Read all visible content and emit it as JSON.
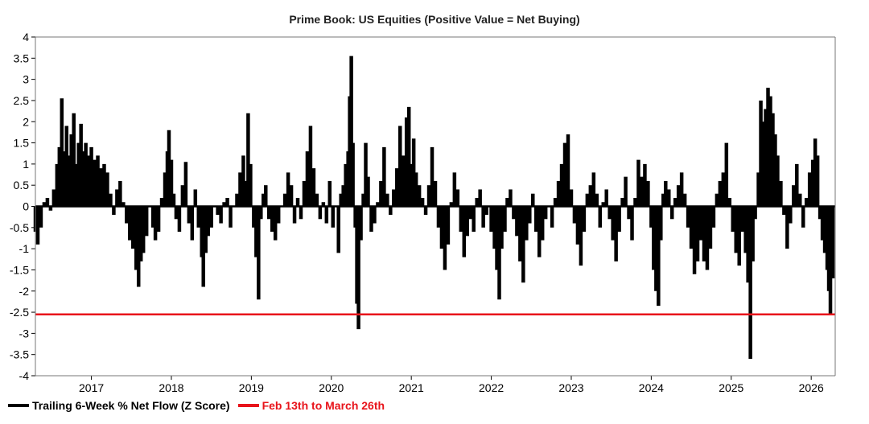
{
  "chart_data": {
    "type": "bar",
    "title": "Prime Book: US Equities (Positive Value = Net Buying)",
    "xlabel": "",
    "ylabel": "",
    "xlim": [
      2016.3,
      2026.3
    ],
    "ylim": [
      -4,
      4
    ],
    "yticks": [
      "4",
      "3.5",
      "3",
      "2.5",
      "2",
      "1.5",
      "1",
      "0.5",
      "0",
      "-0.5",
      "-1",
      "-1.5",
      "-2",
      "-2.5",
      "-3",
      "-3.5",
      "-4"
    ],
    "xticks": [
      "2017",
      "2018",
      "2019",
      "2020",
      "2021",
      "2022",
      "2023",
      "2024",
      "2025",
      "2026"
    ],
    "series": [
      {
        "name": "Trailing 6-Week % Net Flow (Z Score)",
        "color": "#000000",
        "points": [
          [
            2016.3,
            -0.6
          ],
          [
            2016.33,
            -0.9
          ],
          [
            2016.37,
            -0.5
          ],
          [
            2016.41,
            0.1
          ],
          [
            2016.45,
            0.2
          ],
          [
            2016.49,
            -0.1
          ],
          [
            2016.53,
            0.4
          ],
          [
            2016.57,
            1.0
          ],
          [
            2016.6,
            1.4
          ],
          [
            2016.63,
            2.55
          ],
          [
            2016.66,
            1.3
          ],
          [
            2016.69,
            1.9
          ],
          [
            2016.72,
            1.2
          ],
          [
            2016.75,
            1.7
          ],
          [
            2016.78,
            2.2
          ],
          [
            2016.81,
            1.0
          ],
          [
            2016.84,
            1.5
          ],
          [
            2016.87,
            1.95
          ],
          [
            2016.9,
            1.3
          ],
          [
            2016.93,
            1.5
          ],
          [
            2016.96,
            1.2
          ],
          [
            2017.0,
            1.4
          ],
          [
            2017.04,
            1.1
          ],
          [
            2017.08,
            1.2
          ],
          [
            2017.12,
            0.9
          ],
          [
            2017.16,
            1.0
          ],
          [
            2017.2,
            0.8
          ],
          [
            2017.24,
            0.3
          ],
          [
            2017.28,
            -0.2
          ],
          [
            2017.32,
            0.4
          ],
          [
            2017.36,
            0.6
          ],
          [
            2017.4,
            0.1
          ],
          [
            2017.44,
            -0.4
          ],
          [
            2017.48,
            -0.8
          ],
          [
            2017.52,
            -1.0
          ],
          [
            2017.56,
            -1.5
          ],
          [
            2017.59,
            -1.9
          ],
          [
            2017.62,
            -1.3
          ],
          [
            2017.65,
            -1.1
          ],
          [
            2017.69,
            -0.7
          ],
          [
            2017.73,
            0.0
          ],
          [
            2017.77,
            -0.5
          ],
          [
            2017.8,
            -0.8
          ],
          [
            2017.84,
            -0.6
          ],
          [
            2017.88,
            0.2
          ],
          [
            2017.92,
            0.8
          ],
          [
            2017.95,
            1.3
          ],
          [
            2017.97,
            1.8
          ],
          [
            2018.0,
            1.1
          ],
          [
            2018.03,
            0.3
          ],
          [
            2018.06,
            -0.3
          ],
          [
            2018.1,
            -0.6
          ],
          [
            2018.14,
            0.5
          ],
          [
            2018.18,
            1.05
          ],
          [
            2018.22,
            -0.4
          ],
          [
            2018.26,
            -0.8
          ],
          [
            2018.3,
            0.4
          ],
          [
            2018.34,
            -0.5
          ],
          [
            2018.38,
            -1.2
          ],
          [
            2018.4,
            -1.9
          ],
          [
            2018.43,
            -1.1
          ],
          [
            2018.46,
            -0.7
          ],
          [
            2018.5,
            -0.5
          ],
          [
            2018.54,
            0.0
          ],
          [
            2018.58,
            -0.2
          ],
          [
            2018.62,
            -0.4
          ],
          [
            2018.66,
            0.1
          ],
          [
            2018.7,
            0.2
          ],
          [
            2018.74,
            -0.5
          ],
          [
            2018.78,
            0.0
          ],
          [
            2018.82,
            0.3
          ],
          [
            2018.86,
            0.8
          ],
          [
            2018.9,
            1.2
          ],
          [
            2018.93,
            0.6
          ],
          [
            2018.96,
            2.2
          ],
          [
            2018.99,
            1.0
          ],
          [
            2019.03,
            -0.5
          ],
          [
            2019.06,
            -1.2
          ],
          [
            2019.09,
            -2.2
          ],
          [
            2019.12,
            -0.3
          ],
          [
            2019.15,
            0.3
          ],
          [
            2019.18,
            0.5
          ],
          [
            2019.22,
            -0.3
          ],
          [
            2019.26,
            -0.6
          ],
          [
            2019.3,
            -0.8
          ],
          [
            2019.34,
            -0.4
          ],
          [
            2019.38,
            0.0
          ],
          [
            2019.42,
            0.3
          ],
          [
            2019.46,
            0.8
          ],
          [
            2019.5,
            0.5
          ],
          [
            2019.54,
            -0.4
          ],
          [
            2019.58,
            0.2
          ],
          [
            2019.62,
            -0.3
          ],
          [
            2019.66,
            0.6
          ],
          [
            2019.7,
            1.3
          ],
          [
            2019.74,
            1.9
          ],
          [
            2019.78,
            0.9
          ],
          [
            2019.82,
            0.3
          ],
          [
            2019.86,
            -0.3
          ],
          [
            2019.9,
            0.1
          ],
          [
            2019.94,
            -0.4
          ],
          [
            2019.98,
            0.6
          ],
          [
            2020.02,
            -0.5
          ],
          [
            2020.06,
            0.0
          ],
          [
            2020.09,
            -1.1
          ],
          [
            2020.12,
            0.3
          ],
          [
            2020.15,
            0.5
          ],
          [
            2020.18,
            1.0
          ],
          [
            2020.21,
            1.3
          ],
          [
            2020.23,
            2.6
          ],
          [
            2020.25,
            3.55
          ],
          [
            2020.27,
            1.5
          ],
          [
            2020.3,
            -0.5
          ],
          [
            2020.32,
            -2.3
          ],
          [
            2020.34,
            -2.9
          ],
          [
            2020.37,
            -0.8
          ],
          [
            2020.4,
            0.3
          ],
          [
            2020.43,
            1.5
          ],
          [
            2020.46,
            0.7
          ],
          [
            2020.5,
            -0.6
          ],
          [
            2020.54,
            -0.4
          ],
          [
            2020.58,
            0.1
          ],
          [
            2020.62,
            0.6
          ],
          [
            2020.66,
            1.4
          ],
          [
            2020.7,
            0.3
          ],
          [
            2020.74,
            -0.2
          ],
          [
            2020.78,
            0.4
          ],
          [
            2020.82,
            0.9
          ],
          [
            2020.86,
            1.9
          ],
          [
            2020.9,
            1.2
          ],
          [
            2020.94,
            2.1
          ],
          [
            2020.97,
            2.35
          ],
          [
            2021.0,
            1.0
          ],
          [
            2021.03,
            1.6
          ],
          [
            2021.06,
            0.8
          ],
          [
            2021.1,
            0.5
          ],
          [
            2021.14,
            0.2
          ],
          [
            2021.18,
            -0.2
          ],
          [
            2021.22,
            0.5
          ],
          [
            2021.26,
            1.4
          ],
          [
            2021.3,
            0.6
          ],
          [
            2021.34,
            -0.5
          ],
          [
            2021.38,
            -1.0
          ],
          [
            2021.42,
            -1.5
          ],
          [
            2021.46,
            -0.9
          ],
          [
            2021.5,
            0.1
          ],
          [
            2021.54,
            0.8
          ],
          [
            2021.58,
            0.4
          ],
          [
            2021.62,
            -0.6
          ],
          [
            2021.66,
            -1.2
          ],
          [
            2021.7,
            -0.7
          ],
          [
            2021.74,
            -0.3
          ],
          [
            2021.78,
            -0.6
          ],
          [
            2021.82,
            0.2
          ],
          [
            2021.86,
            0.4
          ],
          [
            2021.9,
            -0.5
          ],
          [
            2021.94,
            -0.2
          ],
          [
            2022.0,
            -0.6
          ],
          [
            2022.04,
            -1.0
          ],
          [
            2022.07,
            -1.5
          ],
          [
            2022.1,
            -2.2
          ],
          [
            2022.13,
            -1.0
          ],
          [
            2022.17,
            -0.6
          ],
          [
            2022.2,
            0.2
          ],
          [
            2022.24,
            0.4
          ],
          [
            2022.28,
            -0.3
          ],
          [
            2022.32,
            -0.7
          ],
          [
            2022.36,
            -1.3
          ],
          [
            2022.4,
            -1.8
          ],
          [
            2022.44,
            -0.8
          ],
          [
            2022.48,
            -0.4
          ],
          [
            2022.52,
            0.3
          ],
          [
            2022.56,
            -0.6
          ],
          [
            2022.6,
            -1.2
          ],
          [
            2022.64,
            -0.8
          ],
          [
            2022.68,
            -0.3
          ],
          [
            2022.72,
            0.0
          ],
          [
            2022.76,
            -0.5
          ],
          [
            2022.8,
            0.2
          ],
          [
            2022.84,
            0.6
          ],
          [
            2022.88,
            1.0
          ],
          [
            2022.92,
            1.5
          ],
          [
            2022.96,
            1.7
          ],
          [
            2023.0,
            0.4
          ],
          [
            2023.04,
            -0.4
          ],
          [
            2023.08,
            -0.9
          ],
          [
            2023.12,
            -1.4
          ],
          [
            2023.16,
            -0.6
          ],
          [
            2023.2,
            0.3
          ],
          [
            2023.24,
            0.5
          ],
          [
            2023.28,
            0.8
          ],
          [
            2023.32,
            0.3
          ],
          [
            2023.36,
            -0.5
          ],
          [
            2023.4,
            0.1
          ],
          [
            2023.44,
            0.4
          ],
          [
            2023.48,
            -0.3
          ],
          [
            2023.52,
            -0.8
          ],
          [
            2023.56,
            -1.3
          ],
          [
            2023.6,
            -0.6
          ],
          [
            2023.64,
            0.2
          ],
          [
            2023.68,
            0.7
          ],
          [
            2023.72,
            -0.3
          ],
          [
            2023.76,
            -0.8
          ],
          [
            2023.8,
            0.2
          ],
          [
            2023.84,
            1.1
          ],
          [
            2023.88,
            0.7
          ],
          [
            2023.92,
            1.0
          ],
          [
            2023.96,
            0.6
          ],
          [
            2024.0,
            -0.5
          ],
          [
            2024.03,
            -1.5
          ],
          [
            2024.06,
            -2.0
          ],
          [
            2024.09,
            -2.35
          ],
          [
            2024.12,
            -0.8
          ],
          [
            2024.15,
            0.3
          ],
          [
            2024.18,
            0.6
          ],
          [
            2024.22,
            0.4
          ],
          [
            2024.26,
            -0.3
          ],
          [
            2024.3,
            0.2
          ],
          [
            2024.34,
            0.5
          ],
          [
            2024.38,
            0.8
          ],
          [
            2024.42,
            0.3
          ],
          [
            2024.46,
            -0.5
          ],
          [
            2024.5,
            -1.0
          ],
          [
            2024.54,
            -1.6
          ],
          [
            2024.58,
            -1.3
          ],
          [
            2024.62,
            -0.8
          ],
          [
            2024.66,
            -1.3
          ],
          [
            2024.7,
            -1.5
          ],
          [
            2024.74,
            -1.0
          ],
          [
            2024.78,
            -0.5
          ],
          [
            2024.82,
            0.3
          ],
          [
            2024.86,
            0.6
          ],
          [
            2024.9,
            0.8
          ],
          [
            2024.94,
            1.5
          ],
          [
            2024.98,
            0.2
          ],
          [
            2025.02,
            -0.6
          ],
          [
            2025.06,
            -1.1
          ],
          [
            2025.1,
            -1.4
          ],
          [
            2025.14,
            -0.6
          ],
          [
            2025.18,
            -1.1
          ],
          [
            2025.21,
            -1.8
          ],
          [
            2025.24,
            -3.6
          ],
          [
            2025.27,
            -1.3
          ],
          [
            2025.3,
            -0.3
          ],
          [
            2025.34,
            0.8
          ],
          [
            2025.37,
            2.5
          ],
          [
            2025.4,
            2.0
          ],
          [
            2025.43,
            2.3
          ],
          [
            2025.46,
            2.8
          ],
          [
            2025.49,
            2.6
          ],
          [
            2025.52,
            2.2
          ],
          [
            2025.55,
            1.7
          ],
          [
            2025.58,
            1.2
          ],
          [
            2025.62,
            0.6
          ],
          [
            2025.66,
            -0.2
          ],
          [
            2025.7,
            -1.0
          ],
          [
            2025.74,
            -0.4
          ],
          [
            2025.78,
            0.5
          ],
          [
            2025.82,
            1.0
          ],
          [
            2025.86,
            0.3
          ],
          [
            2025.9,
            -0.5
          ],
          [
            2025.94,
            0.2
          ],
          [
            2025.98,
            0.8
          ],
          [
            2026.02,
            1.1
          ],
          [
            2026.05,
            1.6
          ],
          [
            2026.08,
            1.2
          ],
          [
            2026.11,
            -0.3
          ],
          [
            2026.14,
            -0.8
          ],
          [
            2026.17,
            -1.1
          ],
          [
            2026.2,
            -1.5
          ],
          [
            2026.22,
            -2.0
          ],
          [
            2026.24,
            -2.55
          ],
          [
            2026.27,
            -1.7
          ]
        ]
      },
      {
        "name": "Feb 13th to March 26th",
        "color": "#e8141b",
        "type": "hline",
        "y": -2.55
      }
    ],
    "legend_position": "bottom-left"
  }
}
